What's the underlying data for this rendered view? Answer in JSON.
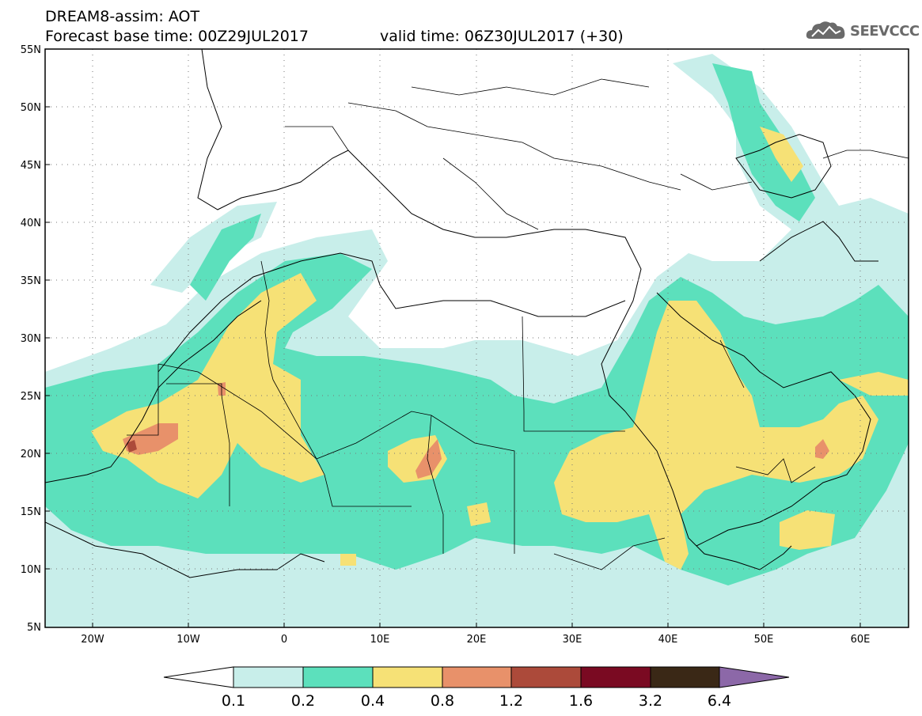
{
  "header": {
    "model_title": "DREAM8-assim: AOT",
    "base_time": "Forecast base time: 00Z29JUL2017",
    "valid_time": "valid time: 06Z30JUL2017 (+30)"
  },
  "logo": {
    "text": "SEEVCCC",
    "icon": "cloud-icon"
  },
  "map": {
    "projection": "lat-lon",
    "lon_range": [
      -25,
      65
    ],
    "lat_range": [
      5,
      55
    ],
    "lat_ticks": [
      "55N",
      "50N",
      "45N",
      "40N",
      "35N",
      "30N",
      "25N",
      "20N",
      "15N",
      "10N",
      "5N"
    ],
    "lon_ticks": [
      "20W",
      "10W",
      "0",
      "10E",
      "20E",
      "30E",
      "40E",
      "50E",
      "60E"
    ],
    "gridlines": "dotted"
  },
  "legend": {
    "levels": [
      "0.1",
      "0.2",
      "0.4",
      "0.8",
      "1.2",
      "1.6",
      "3.2",
      "6.4"
    ],
    "colors": [
      "#c8eeea",
      "#5ce0bc",
      "#f6e176",
      "#e8916a",
      "#ac4a3a",
      "#7a0a22",
      "#3a2816",
      "#8c68a8"
    ]
  }
}
